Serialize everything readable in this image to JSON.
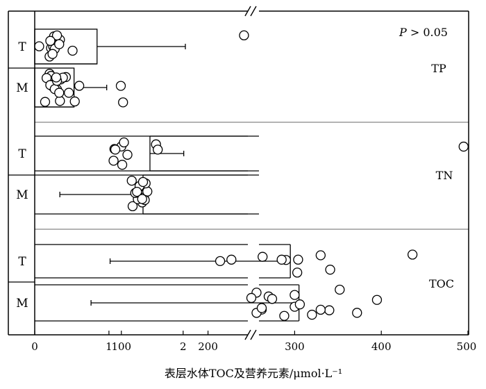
{
  "chart_data": {
    "type": "bar",
    "orientation": "horizontal",
    "broken_x_axis": true,
    "xlabel": "表层水体TOC及营养元素/μmol·L⁻¹",
    "x_segment_left": {
      "range": [
        0,
        2.9
      ],
      "ticks": [
        0,
        1,
        2
      ]
    },
    "x_segment_right": {
      "range": [
        0,
        500
      ],
      "ticks": [
        100,
        200,
        300,
        400,
        500
      ]
    },
    "groups": [
      "T",
      "M"
    ],
    "annotation": {
      "p_italic": "P",
      "p_rest": " > 0.05"
    },
    "panels": [
      {
        "variable": "TP",
        "segment": "left",
        "bars": [
          {
            "group": "T",
            "mean": 0.84,
            "error": 2.03,
            "points": [
              0.06,
              0.22,
              0.26,
              0.34,
              0.29,
              0.25,
              0.3,
              0.2,
              0.27,
              0.33,
              0.21,
              0.24,
              0.51,
              2.82
            ]
          },
          {
            "group": "M",
            "mean": 0.53,
            "error": 0.97,
            "points": [
              0.28,
              0.35,
              0.46,
              0.42,
              0.3,
              0.25,
              0.38,
              0.2,
              0.34,
              0.14,
              0.22,
              0.6,
              0.54,
              0.16,
              0.21,
              0.27,
              0.33,
              0.3,
              0.29,
              1.19,
              1.16
            ]
          }
        ]
      },
      {
        "variable": "TN",
        "segment": "right",
        "bars": [
          {
            "group": "T",
            "mean": 133,
            "error": 172,
            "points": [
              100,
              107,
              92,
              140,
              91,
              142,
              93,
              103,
              101,
              495
            ]
          },
          {
            "group": "M",
            "mean": 125,
            "error": 29,
            "points": [
              113,
              118,
              122,
              126,
              130,
              124,
              119,
              128,
              121,
              116,
              125,
              112,
              118,
              127,
              124
            ]
          }
        ]
      },
      {
        "variable": "TOC",
        "segment": "right",
        "bars": [
          {
            "group": "T",
            "mean": 295,
            "error": 87,
            "points": [
              303,
              263,
              304,
              214,
              227,
              341,
              290,
              285,
              330,
              436
            ]
          },
          {
            "group": "M",
            "mean": 305,
            "error": 65,
            "points": [
              262,
              256,
              270,
              340,
              372,
              288,
              320,
              256,
              330,
              300,
              306,
              352,
              250,
              274,
              300,
              395,
              262
            ]
          }
        ]
      }
    ]
  }
}
